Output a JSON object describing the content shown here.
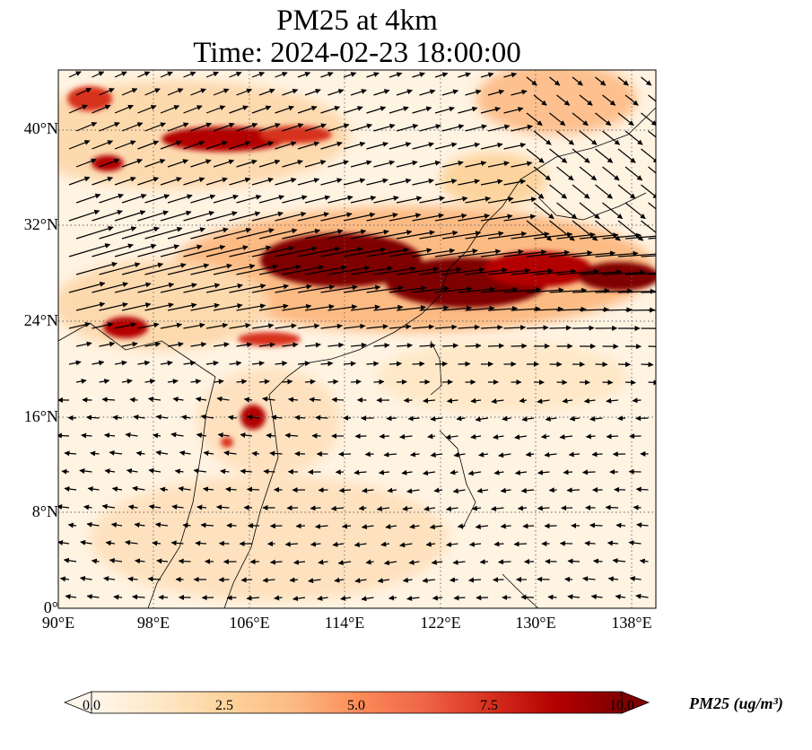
{
  "title": {
    "line1": "PM25 at 4km",
    "line2": "Time: 2024-02-23 18:00:00"
  },
  "map": {
    "extent": {
      "lon_min": 90,
      "lon_max": 140,
      "lat_min": 0,
      "lat_max": 45
    },
    "lat_labels": [
      {
        "value": 0,
        "text": "0°"
      },
      {
        "value": 8,
        "text": "8°N"
      },
      {
        "value": 16,
        "text": "16°N"
      },
      {
        "value": 24,
        "text": "24°N"
      },
      {
        "value": 32,
        "text": "32°N"
      },
      {
        "value": 40,
        "text": "40°N"
      }
    ],
    "lon_labels": [
      {
        "value": 90,
        "text": "90°E"
      },
      {
        "value": 98,
        "text": "98°E"
      },
      {
        "value": 106,
        "text": "106°E"
      },
      {
        "value": 114,
        "text": "114°E"
      },
      {
        "value": 122,
        "text": "122°E"
      },
      {
        "value": 130,
        "text": "130°E"
      },
      {
        "value": 138,
        "text": "138°E"
      }
    ],
    "gridlines": true,
    "gridline_style": "dotted",
    "features": [
      "coastlines",
      "borders",
      "wind-vectors"
    ]
  },
  "colorbar": {
    "label": "PM25 (ug/m³)",
    "colormap": "OrRd",
    "min": 0.0,
    "max": 10.0,
    "extend": "both",
    "ticks": [
      "0.0",
      "2.5",
      "5.0",
      "7.5",
      "10.0"
    ],
    "colors": [
      "#fff7ec",
      "#fee8c8",
      "#fdd49e",
      "#fdbb84",
      "#fc8d59",
      "#ef6548",
      "#d7301f",
      "#b30000",
      "#7f0000"
    ]
  },
  "pollution_plumes": [
    {
      "lon": 104,
      "lat": 39.5,
      "level": 10
    },
    {
      "lon": 93,
      "lat": 42,
      "level": 8
    },
    {
      "lon": 94.5,
      "lat": 37,
      "level": 8
    },
    {
      "lon": 114,
      "lat": 29,
      "level": 10
    },
    {
      "lon": 124,
      "lat": 27.5,
      "level": 10
    },
    {
      "lon": 136,
      "lat": 27.5,
      "level": 9
    },
    {
      "lon": 96,
      "lat": 24,
      "level": 8
    },
    {
      "lon": 107,
      "lat": 15.5,
      "level": 8
    },
    {
      "lon": 109,
      "lat": 22.5,
      "level": 7
    }
  ]
}
